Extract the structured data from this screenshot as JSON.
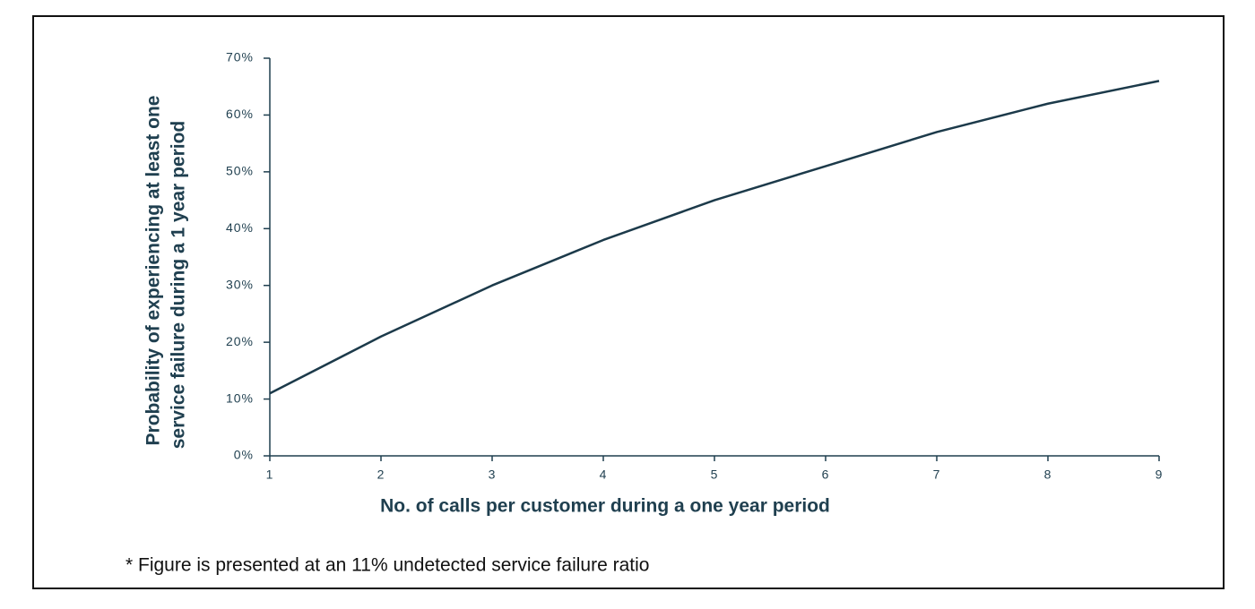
{
  "chart_data": {
    "type": "line",
    "x_label": "No. of calls per customer during a one year period",
    "y_label": [
      "Probability of experiencing at least one",
      "service failure during a 1 year period"
    ],
    "x": [
      1,
      2,
      3,
      4,
      5,
      6,
      7,
      8,
      9
    ],
    "values": [
      11,
      21,
      30,
      38,
      45,
      51,
      57,
      62,
      66
    ],
    "color": "#1c3a4a",
    "xlim": [
      1,
      9
    ],
    "xticks": [
      1,
      2,
      3,
      4,
      5,
      6,
      7,
      8,
      9
    ],
    "ylim": [
      0,
      70
    ],
    "yticks": [
      {
        "value": 0,
        "label": "0%"
      },
      {
        "value": 10,
        "label": "10%"
      },
      {
        "value": 20,
        "label": "20%"
      },
      {
        "value": 30,
        "label": "30%"
      },
      {
        "value": 40,
        "label": "40%"
      },
      {
        "value": 50,
        "label": "50%"
      },
      {
        "value": 60,
        "label": "60%"
      },
      {
        "value": 70,
        "label": "70%"
      }
    ],
    "grid": false
  },
  "footnote": "* Figure is presented at an 11% undetected service failure ratio"
}
